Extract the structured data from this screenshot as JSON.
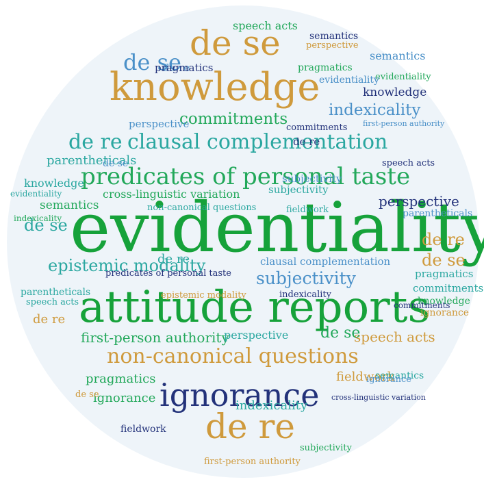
{
  "colors": {
    "green": "#22a85a",
    "bright_green": "#16a23a",
    "gold": "#cf9a3c",
    "blue": "#4a90c8",
    "navy": "#23327a",
    "teal": "#2aa7a0",
    "background": "#eef4f9"
  },
  "words": [
    {
      "text": "evidentiality",
      "color": "#16a23a"
    },
    {
      "text": "attitude reports",
      "color": "#16a23a"
    },
    {
      "text": "knowledge",
      "color": "#cf9a3c"
    },
    {
      "text": "ignorance",
      "color": "#23327a"
    },
    {
      "text": "predicates of personal taste",
      "color": "#22a85a"
    },
    {
      "text": "de se",
      "color": "#cf9a3c"
    },
    {
      "text": "de re",
      "color": "#cf9a3c"
    },
    {
      "text": "non-canonical questions",
      "color": "#cf9a3c"
    },
    {
      "text": "clausal complementation",
      "color": "#2aa7a0"
    },
    {
      "text": "de re",
      "color": "#2aa7a0"
    },
    {
      "text": "de se",
      "color": "#4a90c8"
    },
    {
      "text": "de re",
      "color": "#4a90c8"
    },
    {
      "text": "epistemic modality",
      "color": "#2aa7a0"
    },
    {
      "text": "subjectivity",
      "color": "#4a90c8"
    },
    {
      "text": "first-person authority",
      "color": "#22a85a"
    },
    {
      "text": "commitments",
      "color": "#22a85a"
    },
    {
      "text": "indexicality",
      "color": "#4a90c8"
    },
    {
      "text": "perspective",
      "color": "#23327a"
    },
    {
      "text": "cross-linguistic variation",
      "color": "#22a85a"
    },
    {
      "text": "speech acts",
      "color": "#cf9a3c"
    },
    {
      "text": "de se",
      "color": "#2aa7a0"
    },
    {
      "text": "pragmatics",
      "color": "#22a85a"
    },
    {
      "text": "semantics",
      "color": "#4a90c8"
    },
    {
      "text": "parentheticals",
      "color": "#2aa7a0"
    },
    {
      "text": "fieldwork",
      "color": "#cf9a3c"
    },
    {
      "text": "de re",
      "color": "#cf9a3c"
    },
    {
      "text": "de se",
      "color": "#cf9a3c"
    },
    {
      "text": "knowledge",
      "color": "#23327a"
    },
    {
      "text": "indexicality",
      "color": "#2aa7a0"
    },
    {
      "text": "perspective",
      "color": "#2aa7a0"
    },
    {
      "text": "commitments",
      "color": "#2aa7a0"
    },
    {
      "text": "evidentiality",
      "color": "#22a85a"
    },
    {
      "text": "speech acts",
      "color": "#22a85a"
    },
    {
      "text": "pragmatics",
      "color": "#22a85a"
    },
    {
      "text": "semantics",
      "color": "#22a85a"
    },
    {
      "text": "evidentiality",
      "color": "#2aa7a0"
    },
    {
      "text": "knowledge",
      "color": "#2aa7a0"
    },
    {
      "text": "parentheticals",
      "color": "#2aa7a0"
    },
    {
      "text": "perspective",
      "color": "#4a90c8"
    },
    {
      "text": "ignorance",
      "color": "#22a85a"
    },
    {
      "text": "de re",
      "color": "#2aa7a0"
    },
    {
      "text": "de se",
      "color": "#22a85a"
    },
    {
      "text": "fieldwork",
      "color": "#2aa7a0"
    },
    {
      "text": "clausal complementation",
      "color": "#4a90c8"
    },
    {
      "text": "epistemic modality",
      "color": "#cf9a3c"
    },
    {
      "text": "indexicality",
      "color": "#23327a"
    },
    {
      "text": "pragmatics",
      "color": "#2aa7a0"
    },
    {
      "text": "commitments",
      "color": "#23327a"
    },
    {
      "text": "knowledge",
      "color": "#22a85a"
    },
    {
      "text": "ignorance",
      "color": "#cf9a3c"
    },
    {
      "text": "subjectivity",
      "color": "#4a90c8"
    },
    {
      "text": "fieldwork",
      "color": "#23327a"
    },
    {
      "text": "semantics",
      "color": "#2aa7a0"
    },
    {
      "text": "de re",
      "color": "#cf9a3c"
    },
    {
      "text": "parentheticals",
      "color": "#4a90c8"
    },
    {
      "text": "speech acts",
      "color": "#2aa7a0"
    },
    {
      "text": "de se",
      "color": "#cf9a3c"
    },
    {
      "text": "first-person authority",
      "color": "#cf9a3c"
    },
    {
      "text": "indexicality",
      "color": "#22a85a"
    },
    {
      "text": "evidentiality",
      "color": "#4a90c8"
    },
    {
      "text": "perspective",
      "color": "#cf9a3c"
    },
    {
      "text": "speech acts",
      "color": "#23327a"
    },
    {
      "text": "semantics",
      "color": "#23327a"
    },
    {
      "text": "subjectivity",
      "color": "#2aa7a0"
    },
    {
      "text": "pragmatics",
      "color": "#23327a"
    },
    {
      "text": "ignorance",
      "color": "#4a90c8"
    },
    {
      "text": "predicates of personal taste",
      "color": "#23327a"
    },
    {
      "text": "cross-linguistic variation",
      "color": "#23327a"
    },
    {
      "text": "non-canonical questions",
      "color": "#2aa7a0"
    },
    {
      "text": "first-person authority",
      "color": "#4a90c8"
    },
    {
      "text": "de re",
      "color": "#23327a"
    },
    {
      "text": "de se",
      "color": "#4a90c8"
    },
    {
      "text": "commitments",
      "color": "#23327a"
    },
    {
      "text": "subjectivity",
      "color": "#22a85a"
    }
  ]
}
